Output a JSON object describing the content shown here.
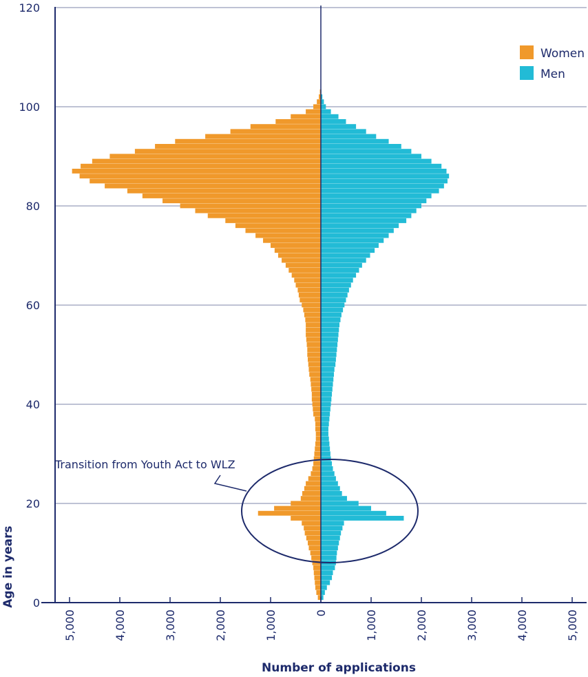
{
  "chart_data": {
    "type": "bar",
    "orientation": "horizontal-population-pyramid",
    "xlabel": "Number of applications",
    "ylabel": "Age in years",
    "x_ticks_left": [
      "5,000",
      "4,000",
      "3,000",
      "2,000",
      "1,000",
      "0"
    ],
    "x_ticks_right": [
      "1,000",
      "2,000",
      "3,000",
      "4,000",
      "5,000"
    ],
    "y_ticks": [
      "0",
      "20",
      "40",
      "60",
      "80",
      "100",
      "120"
    ],
    "xlim": [
      -5000,
      5000
    ],
    "ylim": [
      0,
      120
    ],
    "grid": true,
    "legend_position": "top-right",
    "colors": {
      "women": "#f0992b",
      "men": "#22bbd6",
      "axis": "#1d2a6b",
      "grid": "#7d86a8"
    },
    "annotation": "Transition from Youth Act to WLZ",
    "ages": [
      1,
      2,
      3,
      4,
      5,
      6,
      7,
      8,
      9,
      10,
      11,
      12,
      13,
      14,
      15,
      16,
      17,
      18,
      19,
      20,
      21,
      22,
      23,
      24,
      25,
      26,
      27,
      28,
      29,
      30,
      31,
      32,
      33,
      34,
      35,
      36,
      37,
      38,
      39,
      40,
      41,
      42,
      43,
      44,
      45,
      46,
      47,
      48,
      49,
      50,
      51,
      52,
      53,
      54,
      55,
      56,
      57,
      58,
      59,
      60,
      61,
      62,
      63,
      64,
      65,
      66,
      67,
      68,
      69,
      70,
      71,
      72,
      73,
      74,
      75,
      76,
      77,
      78,
      79,
      80,
      81,
      82,
      83,
      84,
      85,
      86,
      87,
      88,
      89,
      90,
      91,
      92,
      93,
      94,
      95,
      96,
      97,
      98,
      99,
      100,
      101,
      102,
      103
    ],
    "series": [
      {
        "name": "Women",
        "values": [
          60,
          90,
          110,
          120,
          130,
          140,
          150,
          170,
          190,
          210,
          240,
          260,
          290,
          320,
          340,
          380,
          600,
          1250,
          930,
          600,
          400,
          370,
          330,
          300,
          250,
          200,
          170,
          150,
          140,
          130,
          120,
          110,
          100,
          100,
          110,
          110,
          120,
          150,
          160,
          170,
          180,
          180,
          190,
          200,
          210,
          230,
          240,
          250,
          260,
          270,
          270,
          280,
          290,
          300,
          300,
          300,
          310,
          330,
          350,
          380,
          420,
          440,
          460,
          500,
          530,
          580,
          640,
          700,
          780,
          850,
          920,
          1000,
          1150,
          1300,
          1500,
          1700,
          1900,
          2250,
          2500,
          2800,
          3150,
          3550,
          3850,
          4300,
          4600,
          4800,
          4950,
          4780,
          4550,
          4200,
          3700,
          3300,
          2900,
          2300,
          1800,
          1400,
          900,
          600,
          300,
          150,
          80,
          40,
          20
        ]
      },
      {
        "name": "Men",
        "values": [
          50,
          80,
          120,
          180,
          220,
          240,
          280,
          300,
          310,
          320,
          340,
          360,
          380,
          400,
          430,
          460,
          1650,
          1300,
          1000,
          750,
          520,
          420,
          380,
          340,
          300,
          270,
          240,
          220,
          200,
          190,
          180,
          170,
          160,
          150,
          150,
          160,
          170,
          180,
          190,
          200,
          210,
          220,
          230,
          240,
          250,
          260,
          270,
          290,
          300,
          310,
          320,
          330,
          340,
          350,
          360,
          370,
          390,
          410,
          440,
          470,
          500,
          530,
          560,
          600,
          640,
          700,
          760,
          820,
          900,
          980,
          1070,
          1150,
          1250,
          1350,
          1450,
          1550,
          1700,
          1800,
          1900,
          2000,
          2100,
          2200,
          2350,
          2450,
          2520,
          2550,
          2500,
          2400,
          2200,
          2000,
          1800,
          1600,
          1350,
          1100,
          900,
          700,
          500,
          350,
          200,
          100,
          60,
          30,
          10
        ]
      }
    ]
  }
}
